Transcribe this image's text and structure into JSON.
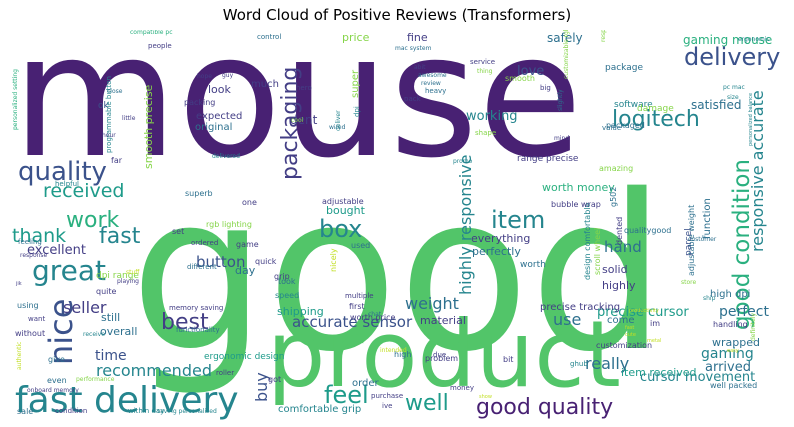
{
  "title": "Word Cloud of Positive Reviews (Transformers)",
  "colors": {
    "dark_purple": "#482173",
    "purple": "#433e85",
    "blue_purple": "#3b528b",
    "slate_blue": "#2d708e",
    "teal": "#25858e",
    "teal_green": "#1e9b8a",
    "green": "#2ab07f",
    "bright_green": "#52c569",
    "light_green": "#86d549",
    "yellow_green": "#c2df23",
    "yellow": "#e5e419"
  },
  "words": [
    {
      "text": "mouse",
      "color": "dark_purple"
    },
    {
      "text": "good",
      "color": "bright_green"
    },
    {
      "text": "product",
      "color": "bright_green"
    },
    {
      "text": "fast delivery",
      "color": "teal"
    },
    {
      "text": "delivery",
      "color": "blue_purple"
    },
    {
      "text": "good condition",
      "color": "green"
    },
    {
      "text": "packaging",
      "color": "purple"
    },
    {
      "text": "quality",
      "color": "blue_purple"
    },
    {
      "text": "great",
      "color": "teal"
    },
    {
      "text": "received",
      "color": "teal_green"
    },
    {
      "text": "nice",
      "color": "blue_purple"
    },
    {
      "text": "work",
      "color": "green"
    },
    {
      "text": "fast",
      "color": "teal"
    },
    {
      "text": "thank",
      "color": "teal_green"
    },
    {
      "text": "item",
      "color": "teal"
    },
    {
      "text": "box",
      "color": "teal"
    },
    {
      "text": "feel",
      "color": "teal_green"
    },
    {
      "text": "best",
      "color": "purple"
    },
    {
      "text": "good quality",
      "color": "dark_purple"
    },
    {
      "text": "well",
      "color": "teal_green"
    },
    {
      "text": "logitech",
      "color": "teal"
    },
    {
      "text": "responsive accurate",
      "color": "teal"
    },
    {
      "text": "highly responsive",
      "color": "teal"
    },
    {
      "text": "accurate sensor",
      "color": "blue_purple"
    },
    {
      "text": "weight",
      "color": "slate_blue"
    },
    {
      "text": "button",
      "color": "blue_purple"
    },
    {
      "text": "recommended",
      "color": "teal"
    },
    {
      "text": "seller",
      "color": "purple"
    },
    {
      "text": "buy",
      "color": "blue_purple"
    },
    {
      "text": "really",
      "color": "slate_blue"
    },
    {
      "text": "use",
      "color": "slate_blue"
    },
    {
      "text": "gaming",
      "color": "teal"
    },
    {
      "text": "perfect",
      "color": "slate_blue"
    },
    {
      "text": "arrived",
      "color": "slate_blue"
    },
    {
      "text": "time",
      "color": "blue_purple"
    },
    {
      "text": "excellent",
      "color": "purple"
    },
    {
      "text": "hand",
      "color": "slate_blue"
    },
    {
      "text": "love",
      "color": "blue_purple"
    },
    {
      "text": "working",
      "color": "teal"
    },
    {
      "text": "gaming mouse",
      "color": "green"
    },
    {
      "text": "satisfied",
      "color": "slate_blue"
    },
    {
      "text": "precise cursor",
      "color": "teal_green"
    },
    {
      "text": "cursor movement",
      "color": "teal"
    },
    {
      "text": "item received",
      "color": "teal_green"
    },
    {
      "text": "smooth precise",
      "color": "light_green"
    },
    {
      "text": "look",
      "color": "purple"
    },
    {
      "text": "dent",
      "color": "purple"
    },
    {
      "text": "expected",
      "color": "purple"
    },
    {
      "text": "original",
      "color": "slate_blue"
    },
    {
      "text": "price",
      "color": "light_green"
    },
    {
      "text": "fine",
      "color": "purple"
    },
    {
      "text": "safely",
      "color": "slate_blue"
    },
    {
      "text": "come",
      "color": "slate_blue"
    },
    {
      "text": "day",
      "color": "slate_blue"
    },
    {
      "text": "still",
      "color": "slate_blue"
    },
    {
      "text": "overall",
      "color": "slate_blue"
    },
    {
      "text": "shipping",
      "color": "teal_green"
    },
    {
      "text": "material",
      "color": "purple"
    },
    {
      "text": "ergonomic design",
      "color": "teal_green"
    },
    {
      "text": "comfortable grip",
      "color": "teal"
    },
    {
      "text": "order",
      "color": "slate_blue"
    },
    {
      "text": "everything",
      "color": "purple"
    },
    {
      "text": "perfectly",
      "color": "slate_blue"
    },
    {
      "text": "bought",
      "color": "teal_green"
    },
    {
      "text": "solid",
      "color": "purple"
    },
    {
      "text": "highly",
      "color": "purple"
    },
    {
      "text": "worth money",
      "color": "green"
    },
    {
      "text": "worth",
      "color": "slate_blue"
    },
    {
      "text": "precise tracking",
      "color": "purple"
    },
    {
      "text": "range precise",
      "color": "purple"
    },
    {
      "text": "super",
      "color": "light_green"
    },
    {
      "text": "package",
      "color": "slate_blue"
    },
    {
      "text": "software",
      "color": "teal"
    },
    {
      "text": "damage",
      "color": "light_green"
    },
    {
      "text": "packaged",
      "color": "slate_blue"
    },
    {
      "text": "function",
      "color": "slate_blue"
    },
    {
      "text": "high dpi",
      "color": "slate_blue"
    },
    {
      "text": "wrapped",
      "color": "slate_blue"
    },
    {
      "text": "handling",
      "color": "purple"
    },
    {
      "text": "well packed",
      "color": "slate_blue"
    },
    {
      "text": "much",
      "color": "purple"
    },
    {
      "text": "packing",
      "color": "purple"
    },
    {
      "text": "ok",
      "color": "blue_purple"
    },
    {
      "text": "dpi range",
      "color": "light_green"
    },
    {
      "text": "rgb lighting",
      "color": "light_green"
    },
    {
      "text": "superb",
      "color": "slate_blue"
    },
    {
      "text": "adjustable weight",
      "color": "slate_blue"
    },
    {
      "text": "design comfortable",
      "color": "teal"
    },
    {
      "text": "scroll wheel",
      "color": "light_green"
    },
    {
      "text": "bubble wrap",
      "color": "purple"
    },
    {
      "text": "parcel",
      "color": "blue_purple"
    },
    {
      "text": "g502",
      "color": "slate_blue"
    },
    {
      "text": "dented",
      "color": "purple"
    },
    {
      "text": "qualitygood",
      "color": "slate_blue"
    },
    {
      "text": "amazing",
      "color": "light_green"
    },
    {
      "text": "customization",
      "color": "purple"
    },
    {
      "text": "worth price",
      "color": "purple"
    },
    {
      "text": "problem",
      "color": "purple"
    },
    {
      "text": "first",
      "color": "purple"
    },
    {
      "text": "multiple",
      "color": "purple"
    },
    {
      "text": "used",
      "color": "slate_blue"
    },
    {
      "text": "nicely",
      "color": "yellow_green"
    },
    {
      "text": "speed",
      "color": "teal"
    },
    {
      "text": "grip",
      "color": "purple"
    },
    {
      "text": "took",
      "color": "slate_blue"
    },
    {
      "text": "quick",
      "color": "purple"
    },
    {
      "text": "game",
      "color": "purple"
    },
    {
      "text": "quite",
      "color": "purple"
    },
    {
      "text": "different",
      "color": "slate_blue"
    },
    {
      "text": "ordered",
      "color": "purple"
    },
    {
      "text": "set",
      "color": "purple"
    },
    {
      "text": "adjustable",
      "color": "purple"
    },
    {
      "text": "one",
      "color": "purple"
    },
    {
      "text": "memory saving",
      "color": "purple"
    },
    {
      "text": "functionality",
      "color": "slate_blue"
    },
    {
      "text": "using",
      "color": "slate_blue"
    },
    {
      "text": "give",
      "color": "slate_blue"
    },
    {
      "text": "even",
      "color": "slate_blue"
    },
    {
      "text": "without",
      "color": "purple"
    },
    {
      "text": "sale",
      "color": "slate_blue"
    },
    {
      "text": "condition",
      "color": "purple"
    },
    {
      "text": "within day",
      "color": "teal"
    },
    {
      "text": "saving personalized",
      "color": "teal"
    },
    {
      "text": "got",
      "color": "purple"
    },
    {
      "text": "purchase",
      "color": "purple"
    },
    {
      "text": "ive",
      "color": "purple"
    },
    {
      "text": "money",
      "color": "purple"
    },
    {
      "text": "bit",
      "color": "purple"
    },
    {
      "text": "due",
      "color": "purple"
    },
    {
      "text": "high",
      "color": "slate_blue"
    },
    {
      "text": "im",
      "color": "purple"
    },
    {
      "text": "ghub",
      "color": "teal"
    },
    {
      "text": "roller",
      "color": "purple"
    },
    {
      "text": "intended",
      "color": "yellow_green"
    },
    {
      "text": "chat",
      "color": "slate_blue"
    },
    {
      "text": "performance",
      "color": "light_green"
    },
    {
      "text": "authentic",
      "color": "yellow_green"
    },
    {
      "text": "want",
      "color": "purple"
    },
    {
      "text": "feeling",
      "color": "slate_blue"
    },
    {
      "text": "response",
      "color": "purple"
    },
    {
      "text": "helpful",
      "color": "teal"
    },
    {
      "text": "far",
      "color": "purple"
    },
    {
      "text": "programmable button",
      "color": "teal"
    },
    {
      "text": "personalized setting",
      "color": "green"
    },
    {
      "text": "compatible pc",
      "color": "green"
    },
    {
      "text": "people",
      "color": "purple"
    },
    {
      "text": "control",
      "color": "slate_blue"
    },
    {
      "text": "hero",
      "color": "purple"
    },
    {
      "text": "mac system",
      "color": "slate_blue"
    },
    {
      "text": "abit",
      "color": "purple"
    },
    {
      "text": "awesome",
      "color": "slate_blue"
    },
    {
      "text": "review",
      "color": "slate_blue"
    },
    {
      "text": "wired",
      "color": "slate_blue"
    },
    {
      "text": "deliver",
      "color": "teal"
    },
    {
      "text": "dpi",
      "color": "teal"
    },
    {
      "text": "pack",
      "color": "purple"
    },
    {
      "text": "heavy",
      "color": "slate_blue"
    },
    {
      "text": "thing",
      "color": "light_green"
    },
    {
      "text": "service",
      "color": "purple"
    },
    {
      "text": "smooth",
      "color": "light_green"
    },
    {
      "text": "big",
      "color": "purple"
    },
    {
      "text": "slightly",
      "color": "slate_blue"
    },
    {
      "text": "mind",
      "color": "purple"
    },
    {
      "text": "ergonomic",
      "color": "teal"
    },
    {
      "text": "pc mac",
      "color": "teal"
    },
    {
      "text": "size",
      "color": "teal"
    },
    {
      "text": "value",
      "color": "slate_blue"
    },
    {
      "text": "customizable rgb",
      "color": "light_green"
    },
    {
      "text": "cool",
      "color": "light_green"
    },
    {
      "text": "delivered",
      "color": "teal"
    },
    {
      "text": "shape",
      "color": "light_green"
    },
    {
      "text": "promo",
      "color": "teal"
    },
    {
      "text": "hope",
      "color": "purple"
    },
    {
      "text": "guy",
      "color": "purple"
    },
    {
      "text": "little",
      "color": "purple"
    },
    {
      "text": "close",
      "color": "slate_blue"
    },
    {
      "text": "hour",
      "color": "purple"
    },
    {
      "text": "playing",
      "color": "purple"
    },
    {
      "text": "stuff",
      "color": "yellow_green"
    },
    {
      "text": "customer",
      "color": "slate_blue"
    },
    {
      "text": "store",
      "color": "light_green"
    },
    {
      "text": "ship",
      "color": "teal"
    },
    {
      "text": "easy",
      "color": "yellow_green"
    },
    {
      "text": "metal",
      "color": "yellow_green"
    },
    {
      "text": "definitely",
      "color": "light_green"
    },
    {
      "text": "personalized balance",
      "color": "teal"
    },
    {
      "text": "onboard memory",
      "color": "purple"
    },
    {
      "text": "receive",
      "color": "teal"
    },
    {
      "text": "cute",
      "color": "yellow_green"
    },
    {
      "text": "jik",
      "color": "purple"
    },
    {
      "text": "show",
      "color": "yellow_green"
    },
    {
      "text": "fast",
      "color": "yellow_green"
    },
    {
      "text": "productivity",
      "color": "yellow_green"
    },
    {
      "text": "responsive",
      "color": "light_green"
    }
  ]
}
